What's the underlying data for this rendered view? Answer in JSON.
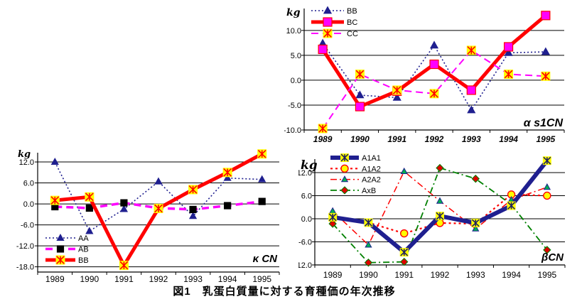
{
  "caption": "図1　乳蛋白質量に対する育種価の年次推移",
  "chart_data": [
    {
      "id": "alpha-s1cn",
      "type": "line",
      "title": "α s1CN",
      "unit_label": "kg",
      "categories": [
        "1989",
        "1990",
        "1991",
        "1992",
        "1993",
        "1994",
        "1995"
      ],
      "ylim": [
        -10,
        14.4
      ],
      "grid": true,
      "legend_position": "top-left",
      "yticks": [
        {
          "value": 10,
          "label": "10.0"
        },
        {
          "value": 5,
          "label": "5.0"
        },
        {
          "value": 0,
          "label": "0.0"
        },
        {
          "value": -5,
          "label": "-5.0"
        },
        {
          "value": -10,
          "label": "-10.0"
        }
      ],
      "series": [
        {
          "name": "BB",
          "zorder": 1,
          "values": [
            7.4,
            -3.0,
            -3.5,
            7.0,
            -6.0,
            5.5,
            5.7
          ],
          "line": {
            "color": "#1F1F8F",
            "width": 1.6,
            "dash": "dotted"
          },
          "marker": {
            "shape": "triangle",
            "fill": "#1F1F8F",
            "stroke": "#1F1F8F",
            "size": 11
          }
        },
        {
          "name": "BC",
          "zorder": 2,
          "values": [
            6.2,
            -5.3,
            -2.2,
            3.2,
            -2.0,
            6.7,
            13.0
          ],
          "line": {
            "color": "#FF0000",
            "width": 5,
            "dash": "solid"
          },
          "marker": {
            "shape": "square",
            "fill": "#FF00FF",
            "stroke": "#FF0000",
            "size": 12
          }
        },
        {
          "name": "CC",
          "zorder": 3,
          "values": [
            -9.7,
            1.2,
            -2.0,
            -2.7,
            6.0,
            1.2,
            0.8
          ],
          "line": {
            "color": "#FF00FF",
            "width": 2,
            "dash": "dashed"
          },
          "marker": {
            "shape": "asterisk",
            "fill": "#FFFF00",
            "stroke": "#FF0000",
            "size": 13
          }
        }
      ]
    },
    {
      "id": "kappa-cn",
      "type": "line",
      "title": "κ CN",
      "unit_label": "kg",
      "categories": [
        "1989",
        "1990",
        "1991",
        "1992",
        "1993",
        "1994",
        "1995"
      ],
      "ylim": [
        -19.5,
        14.65
      ],
      "grid": true,
      "legend_position": "bottom-left",
      "yticks": [
        {
          "value": 12,
          "label": "12.0"
        },
        {
          "value": 6,
          "label": "6.0"
        },
        {
          "value": 0,
          "label": "0.0"
        },
        {
          "value": -6,
          "label": "-6.0"
        },
        {
          "value": -12,
          "label": "-12.0"
        },
        {
          "value": -18,
          "label": "-18.0"
        }
      ],
      "series": [
        {
          "name": "AA",
          "zorder": 1,
          "values": [
            12.0,
            -7.8,
            -1.5,
            6.4,
            -3.5,
            7.4,
            7.0
          ],
          "line": {
            "color": "#1F1F8F",
            "width": 1.6,
            "dash": "dotted"
          },
          "marker": {
            "shape": "triangle",
            "fill": "#1F1F8F",
            "stroke": "#1F1F8F",
            "size": 10
          }
        },
        {
          "name": "AB",
          "zorder": 2,
          "values": [
            -0.8,
            -1.2,
            0.3,
            -1.2,
            -1.6,
            -0.5,
            0.7
          ],
          "line": {
            "color": "#FF00FF",
            "width": 3.5,
            "dash": "dashed"
          },
          "marker": {
            "shape": "square",
            "fill": "#000000",
            "stroke": "#000000",
            "size": 9
          }
        },
        {
          "name": "BB",
          "zorder": 3,
          "values": [
            1.0,
            2.0,
            -17.6,
            -1.3,
            4.1,
            9.0,
            14.3
          ],
          "line": {
            "color": "#FF0000",
            "width": 5,
            "dash": "solid"
          },
          "marker": {
            "shape": "asterisk",
            "fill": "#FFFF00",
            "stroke": "#FF0000",
            "size": 13
          }
        }
      ]
    },
    {
      "id": "beta-cn",
      "type": "line",
      "title": "βCN",
      "unit_label": "kg",
      "categories": [
        "1989",
        "1990",
        "1991",
        "1992",
        "1993",
        "1994",
        "1995"
      ],
      "ylim": [
        -12,
        15.5
      ],
      "grid": true,
      "legend_position": "top-left",
      "yticks": [
        {
          "value": 12,
          "label": "12.0"
        },
        {
          "value": 6,
          "label": "6.0"
        },
        {
          "value": 0,
          "label": "0.0"
        },
        {
          "value": -6,
          "label": "-6.0"
        },
        {
          "value": -12,
          "label": "-12.0"
        }
      ],
      "series": [
        {
          "name": "A1A1",
          "zorder": 4,
          "values": [
            0.4,
            -1.0,
            -8.7,
            0.7,
            -1.1,
            3.4,
            15.1
          ],
          "line": {
            "color": "#1F1F8F",
            "width": 6,
            "dash": "solid"
          },
          "marker": {
            "shape": "asterisk",
            "fill": "#FFFF00",
            "stroke": "#202060",
            "size": 12
          }
        },
        {
          "name": "A1A2",
          "zorder": 1,
          "values": [
            0.0,
            -1.0,
            -3.8,
            -1.1,
            -1.3,
            6.3,
            6.0
          ],
          "line": {
            "color": "#FF0000",
            "width": 2.2,
            "dash": "dotted-bold"
          },
          "marker": {
            "shape": "circle",
            "fill": "#FFFF00",
            "stroke": "#FF0000",
            "size": 10
          }
        },
        {
          "name": "A2A2",
          "zorder": 2,
          "values": [
            2.0,
            -6.8,
            12.3,
            4.6,
            -2.6,
            4.9,
            8.2
          ],
          "line": {
            "color": "#FF0000",
            "width": 1.5,
            "dash": "dashdot"
          },
          "marker": {
            "shape": "triangle",
            "fill": "#00B050",
            "stroke": "#1F1F8F",
            "size": 9
          }
        },
        {
          "name": "AxB",
          "zorder": 3,
          "values": [
            -1.3,
            -11.4,
            -11.2,
            13.2,
            10.4,
            3.7,
            -8.1
          ],
          "line": {
            "color": "#008000",
            "width": 1.8,
            "dash": "dashdot"
          },
          "marker": {
            "shape": "diamond",
            "fill": "#E00000",
            "stroke": "#008000",
            "size": 10
          }
        }
      ]
    }
  ]
}
